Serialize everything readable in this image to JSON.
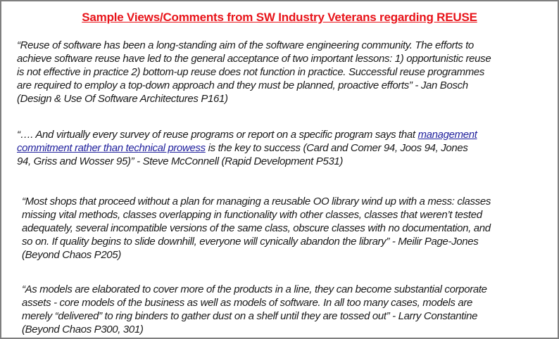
{
  "title": "Sample Views/Comments from SW Industry Veterans regarding REUSE",
  "quotes": [
    {
      "lines": [
        "“Reuse of software has been a long-standing aim of the software engineering community. The efforts to",
        "achieve software reuse have led to the general acceptance of two important lessons: 1) opportunistic reuse",
        "is not effective in practice 2) bottom-up reuse does not function in practice. Successful reuse programmes",
        "are required to employ a top-down approach and they must be planned, proactive efforts” - Jan Bosch",
        "(Design & Use Of Software Architectures P161)"
      ]
    },
    {
      "line1_text": "“…. And virtually every survey of reuse programs or report on a specific program says that ",
      "line1_link": "management",
      "line2_link": "commitment rather than technical prowess",
      "line2_text": " is the key to success (Card and Comer 94, Joos 94, Jones",
      "line3_text": "94, Griss and Wosser 95)” - Steve McConnell (Rapid Development P531)"
    },
    {
      "lines": [
        "“Most shops that proceed without a plan for managing a reusable OO library wind up with a mess: classes",
        "missing vital methods, classes overlapping in functionality with other classes, classes that weren’t tested",
        "adequately, several incompatible versions of the same class, obscure classes with no documentation, and",
        "so on. If quality begins to slide downhill, everyone will cynically abandon the library” - Meilir Page-Jones",
        "(Beyond Chaos P205)"
      ]
    },
    {
      "lines": [
        "“As models are elaborated to cover more of the products in a line, they can become substantial corporate",
        "assets - core models of the business as well as models of software. In all too many cases, models are",
        "merely “delivered” to ring binders to gather dust on a shelf until they are tossed out” - Larry Constantine",
        "(Beyond Chaos P300, 301)"
      ]
    }
  ],
  "colors": {
    "title": "#e8141a",
    "link": "#1f1f9c",
    "border": "#7f7f7f"
  }
}
